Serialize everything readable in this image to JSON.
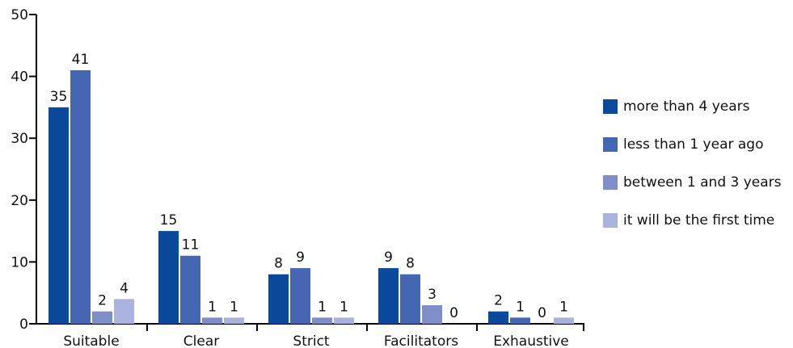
{
  "chart_data": {
    "type": "bar",
    "title": "",
    "xlabel": "",
    "ylabel": "",
    "ylim": [
      0,
      50
    ],
    "yticks": [
      "0",
      "10",
      "20",
      "30",
      "40",
      "50"
    ],
    "categories": [
      "Suitable",
      "Clear",
      "Strict",
      "Facilitators",
      "Exhaustive"
    ],
    "series": [
      {
        "name": "more than 4 years",
        "color": "#0b4a9b",
        "values": [
          35,
          15,
          8,
          9,
          2
        ]
      },
      {
        "name": "less than 1 year ago",
        "color": "#4566b3",
        "values": [
          41,
          11,
          9,
          8,
          1
        ]
      },
      {
        "name": "between 1 and 3 years",
        "color": "#7f8dc8",
        "values": [
          2,
          1,
          1,
          3,
          0
        ]
      },
      {
        "name": "it will be the first time",
        "color": "#aab3dd",
        "values": [
          4,
          1,
          1,
          0,
          1
        ]
      }
    ],
    "grid": false,
    "legend_position": "right"
  }
}
